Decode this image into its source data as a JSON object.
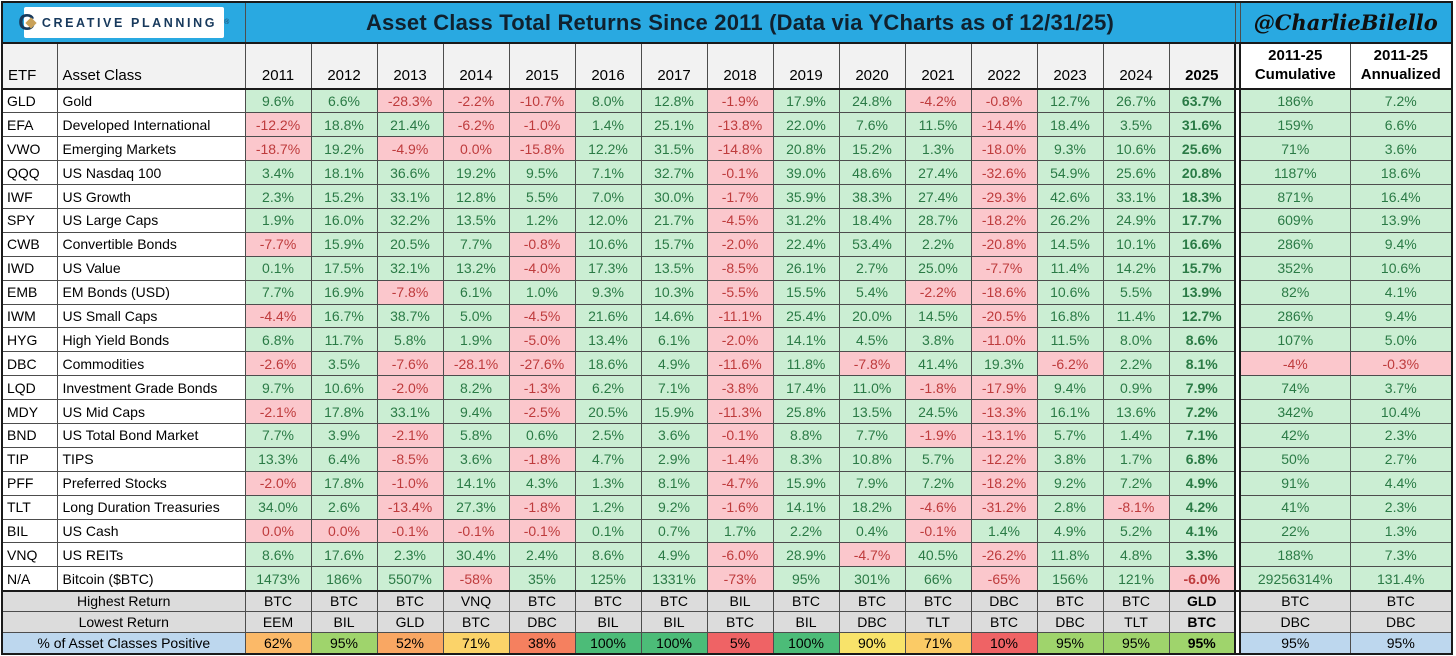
{
  "header": {
    "brand_initial": "C",
    "brand": "CREATIVE PLANNING",
    "reg_mark": "®",
    "title": "Asset Class Total Returns Since 2011 (Data via YCharts as of 12/31/25)",
    "handle": "@CharlieBilello"
  },
  "colors": {
    "band_blue": "#29A9E1",
    "brand_navy": "#17395C",
    "brand_gold": "#C9A158",
    "positive_bg": "#CBEED3",
    "positive_text": "#2A7A45",
    "negative_bg": "#FBC7CC",
    "negative_text": "#BE3B3C",
    "header_bg": "#F2F2F2",
    "header_2025_bg": "#BFBFBF",
    "summary_bg": "#DCDCDC",
    "pct_label_bg": "#BDD7EE",
    "grid": "#4d4d4d"
  },
  "chart_data": {
    "type": "table",
    "title": "Asset Class Total Returns Since 2011 (Data via YCharts as of 12/31/25)",
    "col_etf": "ETF",
    "col_asset": "Asset Class",
    "years": [
      "2011",
      "2012",
      "2013",
      "2014",
      "2015",
      "2016",
      "2017",
      "2018",
      "2019",
      "2020",
      "2021",
      "2022",
      "2023",
      "2024",
      "2025"
    ],
    "cum_line1": "2011-25",
    "cum_line2": "Cumulative",
    "ann_line1": "2011-25",
    "ann_line2": "Annualized",
    "rows": [
      {
        "etf": "GLD",
        "asset_class": "Gold",
        "returns": [
          "9.6%",
          "6.6%",
          "-28.3%",
          "-2.2%",
          "-10.7%",
          "8.0%",
          "12.8%",
          "-1.9%",
          "17.9%",
          "24.8%",
          "-4.2%",
          "-0.8%",
          "12.7%",
          "26.7%",
          "63.7%"
        ],
        "cumulative": "186%",
        "annualized": "7.2%"
      },
      {
        "etf": "EFA",
        "asset_class": "Developed International",
        "returns": [
          "-12.2%",
          "18.8%",
          "21.4%",
          "-6.2%",
          "-1.0%",
          "1.4%",
          "25.1%",
          "-13.8%",
          "22.0%",
          "7.6%",
          "11.5%",
          "-14.4%",
          "18.4%",
          "3.5%",
          "31.6%"
        ],
        "cumulative": "159%",
        "annualized": "6.6%"
      },
      {
        "etf": "VWO",
        "asset_class": "Emerging Markets",
        "returns": [
          "-18.7%",
          "19.2%",
          "-4.9%",
          "0.0%",
          "-15.8%",
          "12.2%",
          "31.5%",
          "-14.8%",
          "20.8%",
          "15.2%",
          "1.3%",
          "-18.0%",
          "9.3%",
          "10.6%",
          "25.6%"
        ],
        "cumulative": "71%",
        "annualized": "3.6%"
      },
      {
        "etf": "QQQ",
        "asset_class": "US Nasdaq 100",
        "returns": [
          "3.4%",
          "18.1%",
          "36.6%",
          "19.2%",
          "9.5%",
          "7.1%",
          "32.7%",
          "-0.1%",
          "39.0%",
          "48.6%",
          "27.4%",
          "-32.6%",
          "54.9%",
          "25.6%",
          "20.8%"
        ],
        "cumulative": "1187%",
        "annualized": "18.6%"
      },
      {
        "etf": "IWF",
        "asset_class": "US Growth",
        "returns": [
          "2.3%",
          "15.2%",
          "33.1%",
          "12.8%",
          "5.5%",
          "7.0%",
          "30.0%",
          "-1.7%",
          "35.9%",
          "38.3%",
          "27.4%",
          "-29.3%",
          "42.6%",
          "33.1%",
          "18.3%"
        ],
        "cumulative": "871%",
        "annualized": "16.4%"
      },
      {
        "etf": "SPY",
        "asset_class": "US Large Caps",
        "returns": [
          "1.9%",
          "16.0%",
          "32.2%",
          "13.5%",
          "1.2%",
          "12.0%",
          "21.7%",
          "-4.5%",
          "31.2%",
          "18.4%",
          "28.7%",
          "-18.2%",
          "26.2%",
          "24.9%",
          "17.7%"
        ],
        "cumulative": "609%",
        "annualized": "13.9%"
      },
      {
        "etf": "CWB",
        "asset_class": "Convertible Bonds",
        "returns": [
          "-7.7%",
          "15.9%",
          "20.5%",
          "7.7%",
          "-0.8%",
          "10.6%",
          "15.7%",
          "-2.0%",
          "22.4%",
          "53.4%",
          "2.2%",
          "-20.8%",
          "14.5%",
          "10.1%",
          "16.6%"
        ],
        "cumulative": "286%",
        "annualized": "9.4%"
      },
      {
        "etf": "IWD",
        "asset_class": "US Value",
        "returns": [
          "0.1%",
          "17.5%",
          "32.1%",
          "13.2%",
          "-4.0%",
          "17.3%",
          "13.5%",
          "-8.5%",
          "26.1%",
          "2.7%",
          "25.0%",
          "-7.7%",
          "11.4%",
          "14.2%",
          "15.7%"
        ],
        "cumulative": "352%",
        "annualized": "10.6%"
      },
      {
        "etf": "EMB",
        "asset_class": "EM Bonds (USD)",
        "returns": [
          "7.7%",
          "16.9%",
          "-7.8%",
          "6.1%",
          "1.0%",
          "9.3%",
          "10.3%",
          "-5.5%",
          "15.5%",
          "5.4%",
          "-2.2%",
          "-18.6%",
          "10.6%",
          "5.5%",
          "13.9%"
        ],
        "cumulative": "82%",
        "annualized": "4.1%"
      },
      {
        "etf": "IWM",
        "asset_class": "US Small Caps",
        "returns": [
          "-4.4%",
          "16.7%",
          "38.7%",
          "5.0%",
          "-4.5%",
          "21.6%",
          "14.6%",
          "-11.1%",
          "25.4%",
          "20.0%",
          "14.5%",
          "-20.5%",
          "16.8%",
          "11.4%",
          "12.7%"
        ],
        "cumulative": "286%",
        "annualized": "9.4%"
      },
      {
        "etf": "HYG",
        "asset_class": "High Yield Bonds",
        "returns": [
          "6.8%",
          "11.7%",
          "5.8%",
          "1.9%",
          "-5.0%",
          "13.4%",
          "6.1%",
          "-2.0%",
          "14.1%",
          "4.5%",
          "3.8%",
          "-11.0%",
          "11.5%",
          "8.0%",
          "8.6%"
        ],
        "cumulative": "107%",
        "annualized": "5.0%"
      },
      {
        "etf": "DBC",
        "asset_class": "Commodities",
        "returns": [
          "-2.6%",
          "3.5%",
          "-7.6%",
          "-28.1%",
          "-27.6%",
          "18.6%",
          "4.9%",
          "-11.6%",
          "11.8%",
          "-7.8%",
          "41.4%",
          "19.3%",
          "-6.2%",
          "2.2%",
          "8.1%"
        ],
        "cumulative": "-4%",
        "annualized": "-0.3%"
      },
      {
        "etf": "LQD",
        "asset_class": "Investment Grade Bonds",
        "returns": [
          "9.7%",
          "10.6%",
          "-2.0%",
          "8.2%",
          "-1.3%",
          "6.2%",
          "7.1%",
          "-3.8%",
          "17.4%",
          "11.0%",
          "-1.8%",
          "-17.9%",
          "9.4%",
          "0.9%",
          "7.9%"
        ],
        "cumulative": "74%",
        "annualized": "3.7%"
      },
      {
        "etf": "MDY",
        "asset_class": "US Mid Caps",
        "returns": [
          "-2.1%",
          "17.8%",
          "33.1%",
          "9.4%",
          "-2.5%",
          "20.5%",
          "15.9%",
          "-11.3%",
          "25.8%",
          "13.5%",
          "24.5%",
          "-13.3%",
          "16.1%",
          "13.6%",
          "7.2%"
        ],
        "cumulative": "342%",
        "annualized": "10.4%"
      },
      {
        "etf": "BND",
        "asset_class": "US Total Bond Market",
        "returns": [
          "7.7%",
          "3.9%",
          "-2.1%",
          "5.8%",
          "0.6%",
          "2.5%",
          "3.6%",
          "-0.1%",
          "8.8%",
          "7.7%",
          "-1.9%",
          "-13.1%",
          "5.7%",
          "1.4%",
          "7.1%"
        ],
        "cumulative": "42%",
        "annualized": "2.3%"
      },
      {
        "etf": "TIP",
        "asset_class": "TIPS",
        "returns": [
          "13.3%",
          "6.4%",
          "-8.5%",
          "3.6%",
          "-1.8%",
          "4.7%",
          "2.9%",
          "-1.4%",
          "8.3%",
          "10.8%",
          "5.7%",
          "-12.2%",
          "3.8%",
          "1.7%",
          "6.8%"
        ],
        "cumulative": "50%",
        "annualized": "2.7%"
      },
      {
        "etf": "PFF",
        "asset_class": "Preferred Stocks",
        "returns": [
          "-2.0%",
          "17.8%",
          "-1.0%",
          "14.1%",
          "4.3%",
          "1.3%",
          "8.1%",
          "-4.7%",
          "15.9%",
          "7.9%",
          "7.2%",
          "-18.2%",
          "9.2%",
          "7.2%",
          "4.9%"
        ],
        "cumulative": "91%",
        "annualized": "4.4%"
      },
      {
        "etf": "TLT",
        "asset_class": "Long Duration Treasuries",
        "returns": [
          "34.0%",
          "2.6%",
          "-13.4%",
          "27.3%",
          "-1.8%",
          "1.2%",
          "9.2%",
          "-1.6%",
          "14.1%",
          "18.2%",
          "-4.6%",
          "-31.2%",
          "2.8%",
          "-8.1%",
          "4.2%"
        ],
        "cumulative": "41%",
        "annualized": "2.3%"
      },
      {
        "etf": "BIL",
        "asset_class": "US Cash",
        "returns": [
          "0.0%",
          "0.0%",
          "-0.1%",
          "-0.1%",
          "-0.1%",
          "0.1%",
          "0.7%",
          "1.7%",
          "2.2%",
          "0.4%",
          "-0.1%",
          "1.4%",
          "4.9%",
          "5.2%",
          "4.1%"
        ],
        "cumulative": "22%",
        "annualized": "1.3%"
      },
      {
        "etf": "VNQ",
        "asset_class": "US REITs",
        "returns": [
          "8.6%",
          "17.6%",
          "2.3%",
          "30.4%",
          "2.4%",
          "8.6%",
          "4.9%",
          "-6.0%",
          "28.9%",
          "-4.7%",
          "40.5%",
          "-26.2%",
          "11.8%",
          "4.8%",
          "3.3%"
        ],
        "cumulative": "188%",
        "annualized": "7.3%"
      },
      {
        "etf": "N/A",
        "asset_class": "Bitcoin ($BTC)",
        "returns": [
          "1473%",
          "186%",
          "5507%",
          "-58%",
          "35%",
          "125%",
          "1331%",
          "-73%",
          "95%",
          "301%",
          "66%",
          "-65%",
          "156%",
          "121%",
          "-6.0%"
        ],
        "cumulative": "29256314%",
        "annualized": "131.4%"
      }
    ],
    "summary": {
      "highest_return": {
        "label": "Highest Return",
        "values": [
          "BTC",
          "BTC",
          "BTC",
          "VNQ",
          "BTC",
          "BTC",
          "BTC",
          "BIL",
          "BTC",
          "BTC",
          "BTC",
          "DBC",
          "BTC",
          "BTC",
          "GLD"
        ],
        "cumulative": "BTC",
        "annualized": "BTC"
      },
      "lowest_return": {
        "label": "Lowest Return",
        "values": [
          "EEM",
          "BIL",
          "GLD",
          "BTC",
          "DBC",
          "BIL",
          "BIL",
          "BTC",
          "BIL",
          "DBC",
          "TLT",
          "BTC",
          "DBC",
          "TLT",
          "BTC"
        ],
        "cumulative": "DBC",
        "annualized": "DBC"
      },
      "pct_positive": {
        "label": "% of Asset Classes Positive",
        "cells": [
          {
            "text": "62%",
            "bg": "#FBB968"
          },
          {
            "text": "95%",
            "bg": "#9FD46C"
          },
          {
            "text": "52%",
            "bg": "#F9A763"
          },
          {
            "text": "71%",
            "bg": "#FBD369"
          },
          {
            "text": "38%",
            "bg": "#F5805F"
          },
          {
            "text": "100%",
            "bg": "#4CBC78"
          },
          {
            "text": "100%",
            "bg": "#4CBC78"
          },
          {
            "text": "5%",
            "bg": "#EF6365"
          },
          {
            "text": "100%",
            "bg": "#4CBC78"
          },
          {
            "text": "90%",
            "bg": "#F8E36A"
          },
          {
            "text": "71%",
            "bg": "#FBCB66"
          },
          {
            "text": "10%",
            "bg": "#EF6365"
          },
          {
            "text": "95%",
            "bg": "#9FD46C"
          },
          {
            "text": "95%",
            "bg": "#9FD46C"
          },
          {
            "text": "95%",
            "bg": "#9FD46C"
          }
        ],
        "cumulative": {
          "text": "95%",
          "bg": "#BDD7EE"
        },
        "annualized": {
          "text": "95%",
          "bg": "#BDD7EE"
        }
      }
    }
  }
}
